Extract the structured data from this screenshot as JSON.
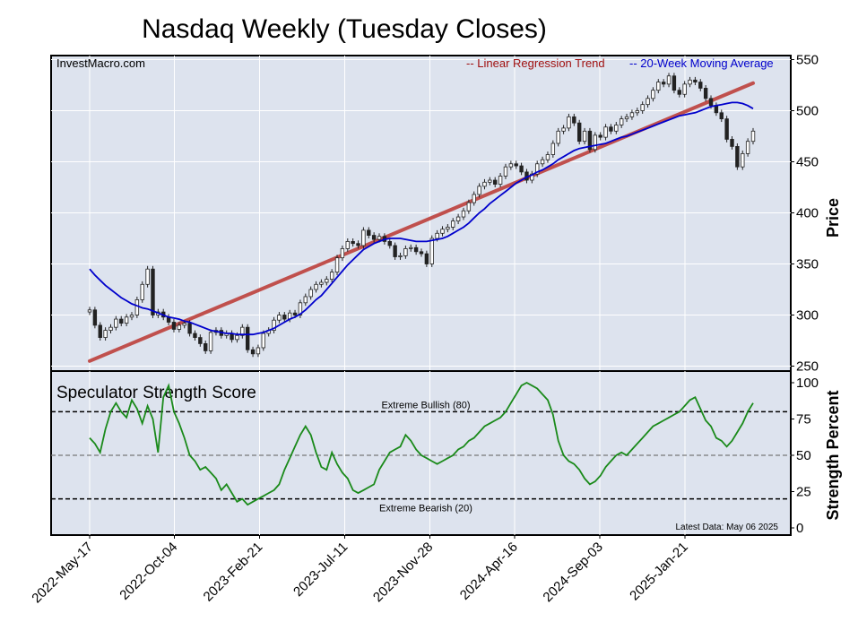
{
  "title": "Nasdaq Weekly (Tuesday Closes)",
  "source": "InvestMacro.com",
  "legend": {
    "trend_label": "-- Linear Regression Trend",
    "ma_label": "-- 20-Week Moving Average",
    "trend_color": "#c0504d",
    "ma_color": "#0000cc"
  },
  "colors": {
    "panel_bg": "#dde3ee",
    "score_line": "#1a8a1a",
    "up_candle": "#ffffff",
    "down_candle": "#222222"
  },
  "chart_data": [
    {
      "type": "candlestick",
      "title": "Nasdaq Weekly (Tuesday Closes)",
      "ylabel": "Price",
      "ylim": [
        240,
        560
      ],
      "yticks": [
        "550",
        "500",
        "450",
        "400",
        "350",
        "300",
        "250"
      ],
      "x_tick_labels": [
        "2022-May-17",
        "2022-Oct-04",
        "2023-Feb-21",
        "2023-Jul-11",
        "2023-Nov-28",
        "2024-Apr-16",
        "2024-Sep-03",
        "2025-Jan-21"
      ],
      "closes": [
        305,
        290,
        278,
        285,
        288,
        296,
        292,
        298,
        300,
        315,
        330,
        345,
        300,
        303,
        298,
        293,
        286,
        290,
        292,
        282,
        278,
        272,
        265,
        283,
        285,
        280,
        282,
        276,
        280,
        288,
        266,
        262,
        268,
        282,
        285,
        295,
        300,
        296,
        302,
        300,
        312,
        318,
        325,
        330,
        332,
        335,
        342,
        356,
        365,
        372,
        370,
        368,
        383,
        378,
        374,
        377,
        372,
        368,
        357,
        358,
        365,
        366,
        362,
        360,
        350,
        375,
        380,
        384,
        386,
        392,
        396,
        402,
        410,
        418,
        426,
        430,
        432,
        428,
        436,
        445,
        448,
        446,
        440,
        432,
        438,
        448,
        452,
        457,
        468,
        480,
        483,
        494,
        488,
        470,
        480,
        462,
        476,
        474,
        484,
        480,
        486,
        492,
        494,
        498,
        500,
        506,
        512,
        520,
        528,
        526,
        534,
        520,
        516,
        526,
        530,
        528,
        522,
        512,
        505,
        498,
        492,
        472,
        465,
        445,
        458,
        470,
        480
      ],
      "moving_average_20w": [
        345,
        339,
        334,
        329,
        325,
        321,
        317,
        314,
        311,
        309,
        307,
        306,
        304,
        302,
        300,
        298,
        297,
        296,
        294,
        293,
        291,
        289,
        287,
        285,
        284,
        283,
        282,
        282,
        281,
        281,
        281,
        281,
        282,
        283,
        285,
        287,
        290,
        293,
        296,
        298,
        301,
        305,
        310,
        315,
        319,
        325,
        331,
        337,
        343,
        349,
        354,
        359,
        364,
        367,
        370,
        372,
        374,
        375,
        375,
        375,
        374,
        373,
        372,
        372,
        372,
        373,
        374,
        375,
        377,
        380,
        383,
        386,
        390,
        395,
        400,
        404,
        409,
        413,
        417,
        421,
        425,
        429,
        432,
        435,
        437,
        440,
        442,
        445,
        448,
        452,
        455,
        458,
        461,
        463,
        464,
        465,
        466,
        467,
        468,
        470,
        472,
        474,
        475,
        477,
        479,
        481,
        483,
        485,
        487,
        489,
        491,
        493,
        495,
        496,
        497,
        498,
        500,
        502,
        504,
        505,
        506,
        507,
        508,
        508,
        507,
        505,
        502
      ],
      "regression_trend": {
        "start": 255,
        "end": 527
      }
    },
    {
      "type": "line",
      "title": "Speculator Strength Score",
      "ylabel": "Strength Percent",
      "ylim": [
        0,
        100
      ],
      "yticks": [
        "100",
        "75",
        "50",
        "25",
        "0"
      ],
      "thresholds": [
        {
          "label": "Extreme Bullish (80)",
          "value": 80
        },
        {
          "label": "Extreme Bearish (20)",
          "value": 20
        }
      ],
      "mid_line": 50,
      "annotation": "Latest Data: May 06 2025",
      "values": [
        62,
        58,
        52,
        68,
        80,
        86,
        80,
        76,
        88,
        82,
        72,
        84,
        75,
        52,
        90,
        98,
        80,
        72,
        62,
        50,
        46,
        40,
        42,
        38,
        34,
        26,
        30,
        24,
        18,
        20,
        16,
        18,
        20,
        22,
        24,
        26,
        30,
        40,
        48,
        56,
        64,
        70,
        64,
        52,
        42,
        40,
        52,
        44,
        38,
        34,
        26,
        24,
        26,
        28,
        30,
        40,
        46,
        52,
        54,
        56,
        64,
        60,
        54,
        50,
        48,
        46,
        44,
        46,
        48,
        50,
        54,
        56,
        60,
        62,
        66,
        70,
        72,
        74,
        76,
        80,
        86,
        92,
        98,
        100,
        98,
        96,
        92,
        88,
        78,
        60,
        50,
        46,
        44,
        40,
        34,
        30,
        32,
        36,
        42,
        46,
        50,
        52,
        50,
        54,
        58,
        62,
        66,
        70,
        72,
        74,
        76,
        78,
        80,
        84,
        88,
        90,
        82,
        74,
        70,
        62,
        60,
        56,
        60,
        66,
        72,
        80,
        86
      ]
    }
  ]
}
